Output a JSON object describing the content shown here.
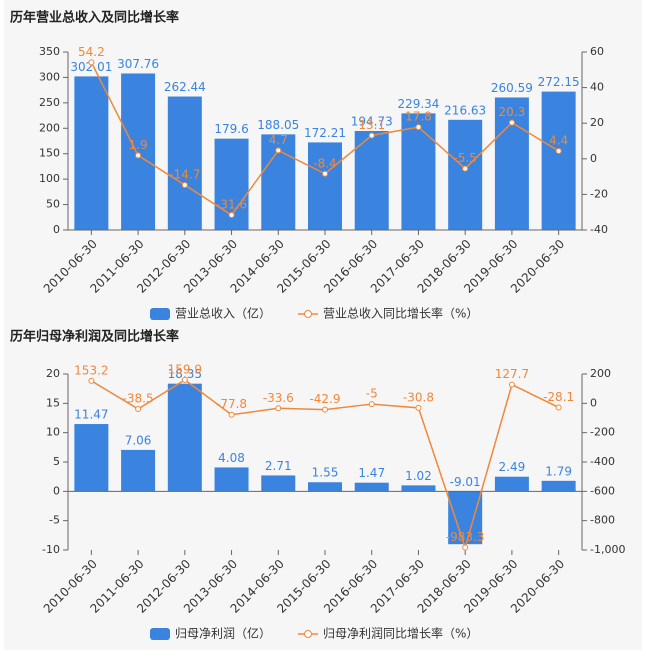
{
  "chart_data": [
    {
      "type": "bar",
      "title": "历年营业总收入及同比增长率",
      "categories": [
        "2010-06-30",
        "2011-06-30",
        "2012-06-30",
        "2013-06-30",
        "2014-06-30",
        "2015-06-30",
        "2016-06-30",
        "2017-06-30",
        "2018-06-30",
        "2019-06-30",
        "2020-06-30"
      ],
      "series": [
        {
          "name": "营业总收入（亿）",
          "type": "bar",
          "color": "#3a84e0",
          "values": [
            302.01,
            307.76,
            262.44,
            179.6,
            188.05,
            172.21,
            194.73,
            229.34,
            216.63,
            260.59,
            272.15
          ]
        },
        {
          "name": "营业总收入同比增长率（%）",
          "type": "line",
          "axis": "y2",
          "color": "#f0883a",
          "values": [
            54.2,
            1.9,
            -14.7,
            -31.6,
            4.7,
            -8.4,
            13.1,
            17.8,
            -5.5,
            20.3,
            4.4
          ]
        }
      ],
      "ylim": [
        0,
        350
      ],
      "yticks": [
        0,
        50,
        100,
        150,
        200,
        250,
        300,
        350
      ],
      "y2lim": [
        -40,
        60
      ],
      "y2ticks": [
        -40,
        -20,
        0,
        20,
        40,
        60
      ]
    },
    {
      "type": "bar",
      "title": "历年归母净利润及同比增长率",
      "categories": [
        "2010-06-30",
        "2011-06-30",
        "2012-06-30",
        "2013-06-30",
        "2014-06-30",
        "2015-06-30",
        "2016-06-30",
        "2017-06-30",
        "2018-06-30",
        "2019-06-30",
        "2020-06-30"
      ],
      "series": [
        {
          "name": "归母净利润（亿）",
          "type": "bar",
          "color": "#3a84e0",
          "values": [
            11.47,
            7.06,
            18.35,
            4.08,
            2.71,
            1.55,
            1.47,
            1.02,
            -9.01,
            2.49,
            1.79
          ]
        },
        {
          "name": "归母净利润同比增长率（%）",
          "type": "line",
          "axis": "y2",
          "color": "#f0883a",
          "values": [
            153.2,
            -38.5,
            159.9,
            -77.8,
            -33.6,
            -42.9,
            -5,
            -30.8,
            -983.3,
            127.7,
            -28.1
          ]
        }
      ],
      "ylim": [
        -10,
        20
      ],
      "yticks": [
        -10,
        -5,
        0,
        5,
        10,
        15,
        20
      ],
      "y2lim": [
        -1000,
        200
      ],
      "y2ticks": [
        {
          "value": -1000,
          "label": "-1,000"
        },
        -800,
        -600,
        -400,
        -200,
        0,
        200
      ]
    }
  ]
}
